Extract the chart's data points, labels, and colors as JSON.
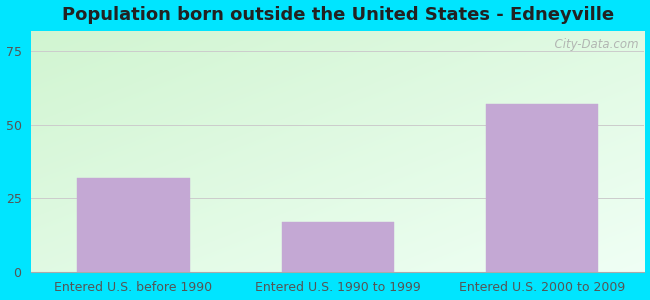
{
  "title": "Population born outside the United States - Edneyville",
  "categories": [
    "Entered U.S. before 1990",
    "Entered U.S. 1990 to 1999",
    "Entered U.S. 2000 to 2009"
  ],
  "values": [
    32,
    17,
    57
  ],
  "bar_color": "#c4a8d4",
  "bar_edgecolor": "#c4a8d4",
  "ylim": [
    0,
    82
  ],
  "yticks": [
    0,
    25,
    50,
    75
  ],
  "background_outer": "#00e5ff",
  "grad_topleft": [
    0.82,
    0.96,
    0.82
  ],
  "grad_botright": [
    0.94,
    1.0,
    0.96
  ],
  "title_fontsize": 13,
  "tick_fontsize": 9,
  "watermark": "  City-Data.com"
}
